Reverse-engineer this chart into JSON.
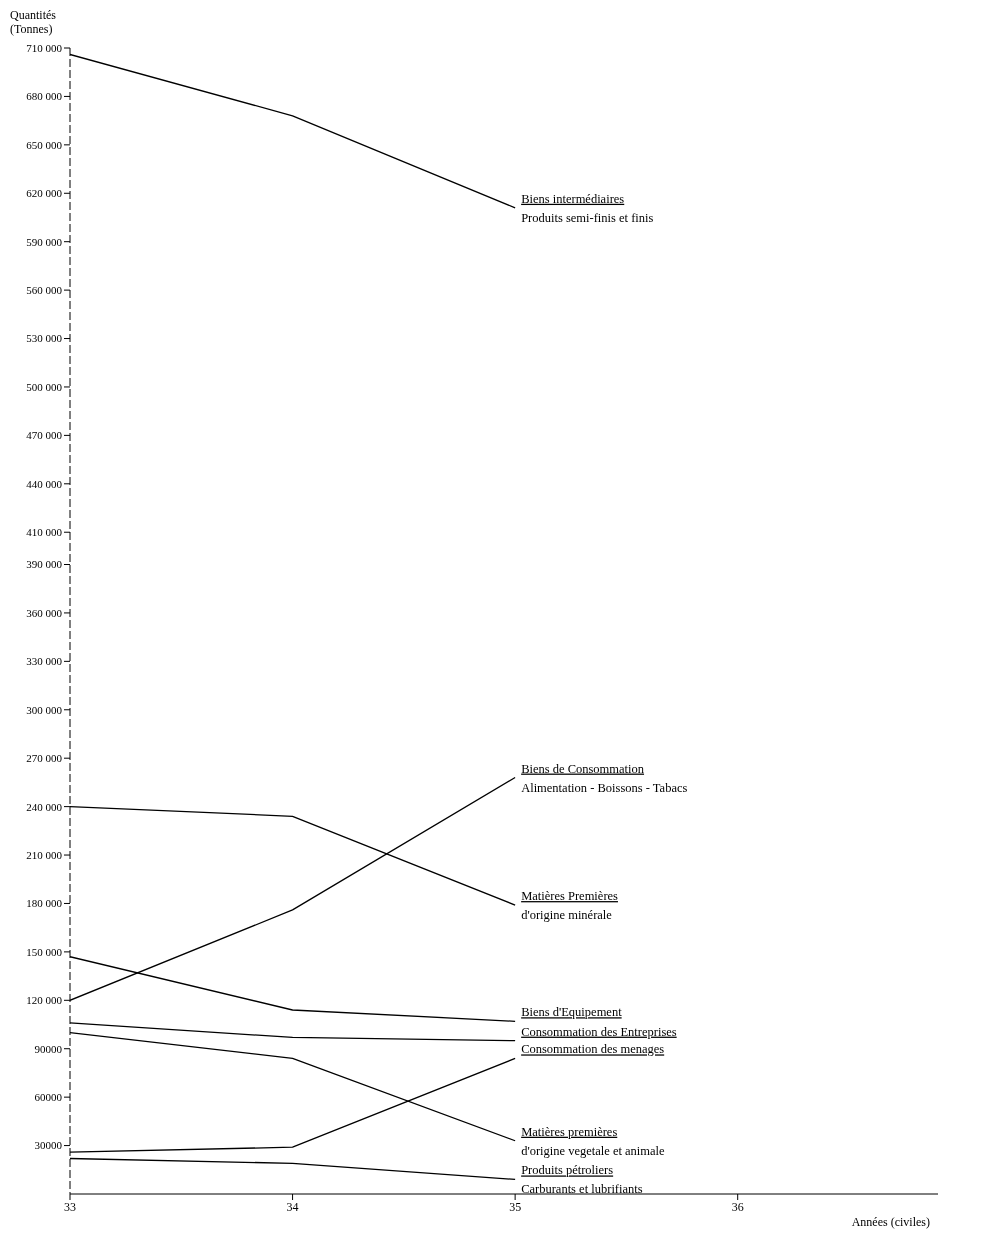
{
  "chart_data": {
    "type": "line",
    "ylabel": "Quantités (Tonnes)",
    "xlabel": "Années (civiles)",
    "x": [
      33,
      34,
      35
    ],
    "series": [
      {
        "name": "Biens intermédiaires",
        "color": "#000000",
        "values": [
          706000,
          668000,
          611000
        ]
      },
      {
        "name": "Biens de Consommation",
        "color": "#000000",
        "values": [
          120000,
          176000,
          258000
        ]
      },
      {
        "name": "Matières Premières",
        "color": "#000000",
        "values": [
          240000,
          234000,
          179000
        ]
      },
      {
        "name": "Biens d'Equipement",
        "color": "#000000",
        "values": [
          147000,
          114000,
          107000
        ]
      },
      {
        "name": "Consommation des Entreprises",
        "color": "#000000",
        "values": [
          106000,
          97000,
          95000
        ]
      },
      {
        "name": "Consommation des menages",
        "color": "#000000",
        "values": [
          26000,
          29000,
          84000
        ]
      },
      {
        "name": "Matières premières",
        "color": "#000000",
        "values": [
          100000,
          84000,
          33000
        ]
      },
      {
        "name": "Produits pétroliers",
        "color": "#000000",
        "values": [
          22000,
          19000,
          9000
        ]
      }
    ],
    "annotations": [
      "Produits semi-finis et finis",
      "Alimentation - Boissons - Tabacs",
      "d'origine minérale",
      "d'origine vegetale et animale",
      "Carburants et lubrifiants"
    ],
    "xlim": [
      33,
      36.9
    ],
    "xticks": [
      33,
      34,
      35,
      36
    ],
    "ylim": [
      0,
      710000
    ],
    "yticks": [
      {
        "value": 30000,
        "label": "30000"
      },
      {
        "value": 60000,
        "label": "60000"
      },
      {
        "value": 90000,
        "label": "90000"
      },
      {
        "value": 120000,
        "label": "120 000"
      },
      {
        "value": 150000,
        "label": "150 000"
      },
      {
        "value": 180000,
        "label": "180 000"
      },
      {
        "value": 210000,
        "label": "210 000"
      },
      {
        "value": 240000,
        "label": "240 000"
      },
      {
        "value": 270000,
        "label": "270 000"
      },
      {
        "value": 300000,
        "label": "300 000"
      },
      {
        "value": 330000,
        "label": "330 000"
      },
      {
        "value": 360000,
        "label": "360 000"
      },
      {
        "value": 390000,
        "label": "390 000"
      },
      {
        "value": 410000,
        "label": "410 000"
      },
      {
        "value": 440000,
        "label": "440 000"
      },
      {
        "value": 470000,
        "label": "470 000"
      },
      {
        "value": 500000,
        "label": "500 000"
      },
      {
        "value": 530000,
        "label": "530 000"
      },
      {
        "value": 560000,
        "label": "560 000"
      },
      {
        "value": 590000,
        "label": "590 000"
      },
      {
        "value": 620000,
        "label": "620 000"
      },
      {
        "value": 650000,
        "label": "650 000"
      },
      {
        "value": 680000,
        "label": "680 000"
      },
      {
        "value": 710000,
        "label": "710 000"
      }
    ],
    "grid": false,
    "legend": false,
    "marker": "none",
    "line_style": "solid"
  }
}
